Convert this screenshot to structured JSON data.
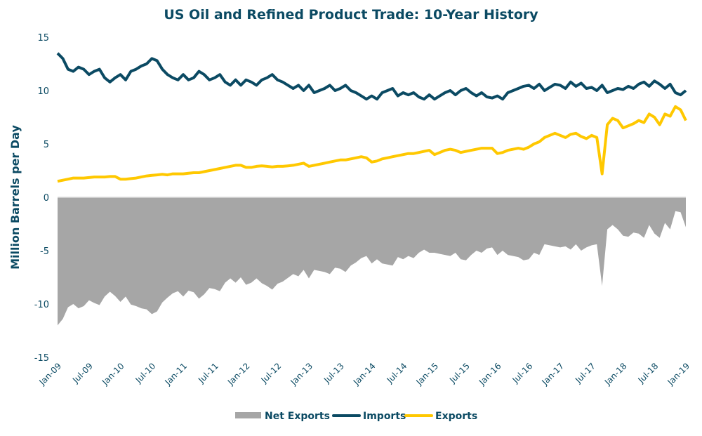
{
  "chart_data": {
    "type": "line",
    "title": "US Oil and Refined Product Trade: 10-Year History",
    "ylabel": "Million Barrels per Day",
    "xlabel": "",
    "ylim": [
      -15,
      15
    ],
    "yticks": [
      "15",
      "10",
      "5",
      "0",
      "-5",
      "-10",
      "-15"
    ],
    "ytick_values": [
      15,
      10,
      5,
      0,
      -5,
      -10,
      -15
    ],
    "xticks": [
      "Jan-09",
      "Jul-09",
      "Jan-10",
      "Jul-10",
      "Jan-11",
      "Jul-11",
      "Jan-12",
      "Jul-12",
      "Jan-13",
      "Jul-13",
      "Jan-14",
      "Jul-14",
      "Jan-15",
      "Jul-15",
      "Jan-16",
      "Jul-16",
      "Jan-17",
      "Jul-17",
      "Jan-18",
      "Jul-18",
      "Jan-19"
    ],
    "x_frequency": "monthly, Jan-09 to Jan-19",
    "grid": false,
    "legend": "bottom",
    "series": [
      {
        "name": "Net Exports",
        "kind": "area",
        "color": "#a6a6a6",
        "values": [
          -12,
          -11.4,
          -10.3,
          -10,
          -10.4,
          -10.2,
          -9.65,
          -9.9,
          -10.1,
          -9.3,
          -8.85,
          -9.25,
          -9.8,
          -9.3,
          -10.05,
          -10.2,
          -10.4,
          -10.5,
          -10.95,
          -10.7,
          -9.85,
          -9.4,
          -9,
          -8.8,
          -9.3,
          -8.75,
          -8.9,
          -9.5,
          -9.1,
          -8.5,
          -8.6,
          -8.8,
          -8,
          -7.6,
          -8,
          -7.5,
          -8.2,
          -8,
          -7.6,
          -8.05,
          -8.3,
          -8.65,
          -8.1,
          -7.9,
          -7.55,
          -7.2,
          -7.4,
          -6.8,
          -7.6,
          -6.8,
          -6.9,
          -7,
          -7.2,
          -6.6,
          -6.7,
          -7,
          -6.4,
          -6.1,
          -5.7,
          -5.5,
          -6.2,
          -5.8,
          -6.2,
          -6.3,
          -6.4,
          -5.6,
          -5.8,
          -5.5,
          -5.7,
          -5.2,
          -4.9,
          -5.2,
          -5.2,
          -5.3,
          -5.4,
          -5.5,
          -5.2,
          -5.8,
          -5.9,
          -5.4,
          -5,
          -5.2,
          -4.8,
          -4.7,
          -5.4,
          -5,
          -5.4,
          -5.5,
          -5.6,
          -5.9,
          -5.8,
          -5.2,
          -5.4,
          -4.4,
          -4.5,
          -4.6,
          -4.7,
          -4.6,
          -4.9,
          -4.4,
          -5,
          -4.7,
          -4.5,
          -4.4,
          -8.3,
          -3,
          -2.6,
          -3,
          -3.6,
          -3.7,
          -3.3,
          -3.4,
          -3.8,
          -2.6,
          -3.4,
          -3.8,
          -2.4,
          -3,
          -1.3,
          -1.4,
          -2.8
        ]
      },
      {
        "name": "Imports",
        "kind": "line",
        "color": "#0b4a63",
        "values": [
          13.5,
          13,
          12,
          11.8,
          12.2,
          12,
          11.5,
          11.8,
          12,
          11.2,
          10.8,
          11.2,
          11.5,
          11,
          11.8,
          12,
          12.3,
          12.5,
          13,
          12.8,
          12,
          11.5,
          11.2,
          11,
          11.5,
          11,
          11.2,
          11.8,
          11.5,
          11,
          11.2,
          11.5,
          10.8,
          10.5,
          11,
          10.5,
          11,
          10.8,
          10.5,
          11,
          11.2,
          11.5,
          11,
          10.8,
          10.5,
          10.2,
          10.5,
          10,
          10.5,
          9.8,
          10,
          10.2,
          10.5,
          10,
          10.2,
          10.5,
          10,
          9.8,
          9.5,
          9.2,
          9.5,
          9.2,
          9.8,
          10,
          10.2,
          9.5,
          9.8,
          9.6,
          9.8,
          9.4,
          9.2,
          9.6,
          9.2,
          9.5,
          9.8,
          10,
          9.6,
          10,
          10.2,
          9.8,
          9.5,
          9.8,
          9.4,
          9.3,
          9.5,
          9.2,
          9.8,
          10,
          10.2,
          10.4,
          10.5,
          10.2,
          10.6,
          10,
          10.3,
          10.6,
          10.5,
          10.2,
          10.8,
          10.4,
          10.7,
          10.2,
          10.3,
          10,
          10.5,
          9.8,
          10,
          10.2,
          10.1,
          10.4,
          10.2,
          10.6,
          10.8,
          10.4,
          10.9,
          10.6,
          10.2,
          10.6,
          9.8,
          9.6,
          10
        ]
      },
      {
        "name": "Exports",
        "kind": "line",
        "color": "#ffc800",
        "values": [
          1.5,
          1.6,
          1.7,
          1.8,
          1.8,
          1.8,
          1.85,
          1.9,
          1.9,
          1.9,
          1.95,
          1.95,
          1.7,
          1.7,
          1.75,
          1.8,
          1.9,
          2,
          2.05,
          2.1,
          2.15,
          2.1,
          2.2,
          2.2,
          2.2,
          2.25,
          2.3,
          2.3,
          2.4,
          2.5,
          2.6,
          2.7,
          2.8,
          2.9,
          3,
          3,
          2.8,
          2.8,
          2.9,
          2.95,
          2.9,
          2.85,
          2.9,
          2.9,
          2.95,
          3.0,
          3.1,
          3.2,
          2.9,
          3.0,
          3.1,
          3.2,
          3.3,
          3.4,
          3.5,
          3.5,
          3.6,
          3.7,
          3.8,
          3.7,
          3.3,
          3.4,
          3.6,
          3.7,
          3.8,
          3.9,
          4.0,
          4.1,
          4.1,
          4.2,
          4.3,
          4.4,
          4.0,
          4.2,
          4.4,
          4.5,
          4.4,
          4.2,
          4.3,
          4.4,
          4.5,
          4.6,
          4.6,
          4.6,
          4.1,
          4.2,
          4.4,
          4.5,
          4.6,
          4.5,
          4.7,
          5.0,
          5.2,
          5.6,
          5.8,
          6.0,
          5.8,
          5.6,
          5.9,
          6.0,
          5.7,
          5.5,
          5.8,
          5.6,
          2.2,
          6.8,
          7.4,
          7.2,
          6.5,
          6.7,
          6.9,
          7.2,
          7.0,
          7.8,
          7.5,
          6.8,
          7.8,
          7.6,
          8.5,
          8.2,
          7.2
        ]
      }
    ],
    "colors": {
      "text": "#0b4a63",
      "zero_line": "#d9d9d9"
    }
  }
}
